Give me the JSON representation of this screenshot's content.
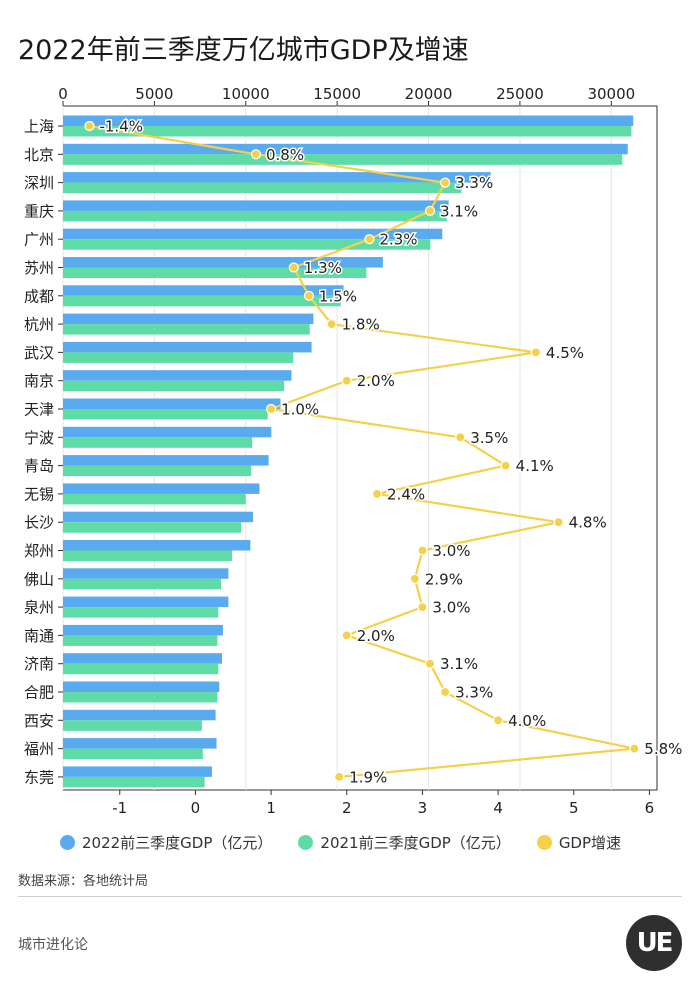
{
  "title": "2022年前三季度万亿城市GDP及增速",
  "legend": {
    "gdp2022": "2022前三季度GDP（亿元）",
    "gdp2021": "2021前三季度GDP（亿元）",
    "growth": "GDP增速"
  },
  "source": "数据来源：各地统计局",
  "brand": "城市进化论",
  "logo_text": "UE",
  "colors": {
    "gdp2022": "#5aaaf0",
    "gdp2021": "#5fdba8",
    "growth": "#f5d04a",
    "grid": "#e6e6e6"
  },
  "chart_data": {
    "type": "bar",
    "title": "2022年前三季度万亿城市GDP及增速",
    "categories": [
      "上海",
      "北京",
      "深圳",
      "重庆",
      "广州",
      "苏州",
      "成都",
      "杭州",
      "武汉",
      "南京",
      "天津",
      "宁波",
      "青岛",
      "无锡",
      "长沙",
      "郑州",
      "佛山",
      "泉州",
      "南通",
      "济南",
      "合肥",
      "西安",
      "福州",
      "东莞"
    ],
    "series": [
      {
        "name": "2022前三季度GDP（亿元）",
        "values": [
          31200,
          30900,
          23400,
          21100,
          20750,
          17500,
          15350,
          13700,
          13600,
          12500,
          11900,
          11400,
          11250,
          10750,
          10400,
          10250,
          9050,
          9050,
          8750,
          8700,
          8550,
          8350,
          8400,
          8150
        ]
      },
      {
        "name": "2021前三季度GDP（亿元）",
        "values": [
          31100,
          30600,
          21800,
          21000,
          20100,
          16600,
          15200,
          13500,
          12600,
          12100,
          11200,
          10350,
          10300,
          10000,
          9750,
          9250,
          8650,
          8500,
          8450,
          8500,
          8450,
          7600,
          7650,
          7750
        ]
      },
      {
        "name": "GDP增速",
        "values": [
          -1.4,
          0.8,
          3.3,
          3.1,
          2.3,
          1.3,
          1.5,
          1.8,
          4.5,
          2.0,
          1.0,
          3.5,
          4.1,
          2.4,
          4.8,
          3.0,
          2.9,
          3.0,
          2.0,
          3.1,
          3.3,
          4.0,
          5.8,
          1.9
        ]
      }
    ],
    "growth_labels": [
      "-1.4%",
      "0.8%",
      "3.3%",
      "3.1%",
      "2.3%",
      "1.3%",
      "1.5%",
      "1.8%",
      "4.5%",
      "2.0%",
      "1.0%",
      "3.5%",
      "4.1%",
      "2.4%",
      "4.8%",
      "3.0%",
      "2.9%",
      "3.0%",
      "2.0%",
      "3.1%",
      "3.3%",
      "4.0%",
      "5.8%",
      "1.9%"
    ],
    "top_axis": {
      "range": [
        0,
        32500
      ],
      "ticks": [
        0,
        5000,
        10000,
        15000,
        20000,
        25000,
        30000
      ],
      "tick_labels": [
        "0",
        "5000",
        "10000",
        "15000",
        "20000",
        "25000",
        "30000"
      ]
    },
    "bottom_axis": {
      "range": [
        -1.75,
        6.1
      ],
      "ticks": [
        -1,
        0,
        1,
        2,
        3,
        4,
        5,
        6
      ],
      "tick_labels": [
        "-1",
        "0",
        "1",
        "2",
        "3",
        "4",
        "5",
        "6"
      ]
    },
    "grid": true,
    "legend_position": "bottom"
  }
}
